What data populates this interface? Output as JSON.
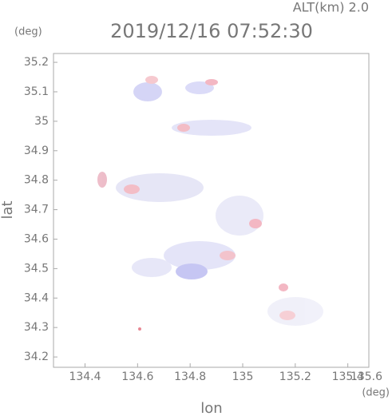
{
  "chart_data": {
    "type": "map",
    "title": "2019/12/16 07:52:30",
    "altitude_label": "ALT(km) 2.0",
    "y_unit": "(deg)",
    "x_unit": "(deg)",
    "xlabel": "lon",
    "ylabel": "lat",
    "xlim": [
      134.28,
      135.48
    ],
    "ylim": [
      34.165,
      35.23
    ],
    "xticks": [
      134.4,
      134.6,
      134.8,
      135.0,
      135.2,
      135.4,
      135.6
    ],
    "yticks": [
      34.2,
      34.3,
      34.4,
      34.5,
      34.6,
      34.7,
      34.8,
      34.9,
      35.0,
      35.1,
      35.2
    ]
  }
}
